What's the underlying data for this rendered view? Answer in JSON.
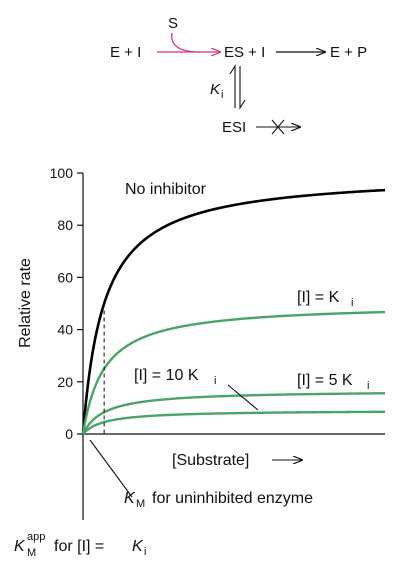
{
  "scheme": {
    "substrate": "S",
    "left": "E + I",
    "middle": "ES + I",
    "right": "E + P",
    "ki_main": "K",
    "ki_sub": "i",
    "bottom": "ESI"
  },
  "annotations": {
    "km_main": "K",
    "km_sub": "M",
    "km_text": "for uninhibited enzyme",
    "kmapp_main": "K",
    "kmapp_sup": "app",
    "kmapp_sub": "M",
    "kmapp_text": "for [I] =",
    "kmapp_ki_main": "K",
    "kmapp_ki_sub": "i"
  },
  "chart_data": {
    "type": "line",
    "xlabel": "[Substrate]",
    "ylabel": "Relative rate",
    "ylim": [
      0,
      100
    ],
    "yticks": [
      0,
      20,
      40,
      60,
      80,
      100
    ],
    "xlim": [
      0,
      100
    ],
    "grid": false,
    "series": [
      {
        "name": "No inhibitor",
        "vmax": 100,
        "km": 7,
        "color": "#000000"
      },
      {
        "name": "[I] = K",
        "name_sub": "i",
        "vmax": 50,
        "km": 7,
        "color": "#4aa36a"
      },
      {
        "name": "[I] = 5 K",
        "name_sub": "i",
        "vmax": 16.7,
        "km": 7,
        "color": "#4aa36a"
      },
      {
        "name": "[I] = 10 K",
        "name_sub": "i",
        "vmax": 9.1,
        "km": 7,
        "color": "#4aa36a"
      }
    ],
    "reference_lines": [
      {
        "x": 7,
        "y": 50,
        "style": "dashed"
      }
    ]
  }
}
